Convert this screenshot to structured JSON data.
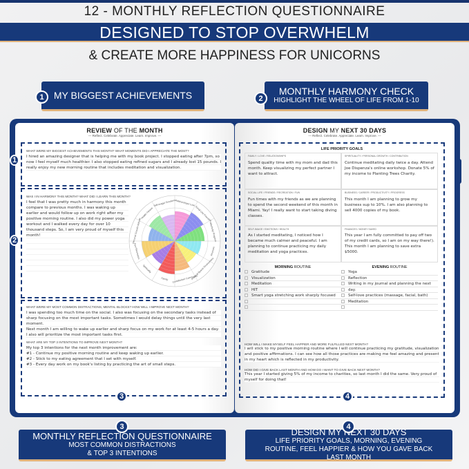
{
  "header": {
    "title": "12 - MONTHLY REFLECTION QUESTIONNAIRE",
    "banner": "DESIGNED TO STOP OVERWHELM",
    "subtitle": "& CREATE MORE HAPPINESS FOR UNICORNS"
  },
  "callouts": [
    {
      "num": "1",
      "title": "MY BIGGEST ACHIEVEMENTS",
      "sub": ""
    },
    {
      "num": "2",
      "title": "MONTHLY HARMONY CHECK",
      "sub": "HIGHLIGHT THE WHEEL OF LIFE FROM 1-10"
    },
    {
      "num": "3",
      "title": "MONTHLY REFLECTION QUESTIONNAIRE",
      "sub": "MOST COMMON DISTRACTIONS & TOP 3 INTENTIONS"
    },
    {
      "num": "4",
      "title": "DESIGN MY NEXT 30 DAYS",
      "sub": "LIFE PRIORITY GOALS, MORNING, EVENING ROUTINE, FEEL HAPPIER & HOW YOU GAVE BACK LAST MONTH"
    }
  ],
  "colors": {
    "navy": "#17397a",
    "gold": "#e0b27a"
  },
  "left": {
    "title_a": "REVIEW",
    "title_b": "OF THE",
    "title_c": "MONTH",
    "tagline": "— Reflect. Celebrate. Appreciate. Learn. Improve. —",
    "q1": "WHAT WERE MY BIGGEST ACHIEVEMENTS THIS MONTH? WHAT MOMENTS DID I APPRECIATE THE MOST?",
    "a1": "I hired an amazing designer that is helping me with my book project. I stopped eating after 7pm, so now I feel myself much healthier. I also stopped eating refined sugars and I already lost 15 pounds. I really enjoy my new morning routine that includes meditation and visualization.",
    "q2": "WAS I IN HARMONY THIS MONTH? WHAT DID I LEARN THIS MONTH?",
    "a2": "I feel that I was pretty much in harmony this month compare to previous months. I was waking up earlier and would follow up on work right after my positive morning routine. I also did my power yoga workout and I walked every day for over 10 thousand steps. So, I am very proud of myself this month!",
    "q3": "WHAT WERE MY MOST COMMON DISTRACTIONS, MENTAL BLOCKS? HOW WILL I IMPROVE NEXT MONTH?",
    "a3": "I was spending too much time on the social. I also was focusing on the secondary tasks instead of sharp focusing on the most important tasks. Sometimes I would delay things until the very last moment.",
    "a3b": "Next month I am willing to wake up earlier and sharp focus on my work for at least 4-5 hours a day. I also will prioritize the most important tasks first.",
    "q4": "WHAT ARE MY TOP 3 INTENTIONS TO IMPROVE NEXT MONTH?",
    "a4": [
      "My top 3 intentions for the next month improvement are:",
      "#1 - Continue my positive morning routine and keep waking up earlier.",
      "#2 - Stick to my eating agreement that I set with myself.",
      "#3 - Every day work on my book's listing by practicing the art of small steps."
    ]
  },
  "wheel": {
    "max": 10,
    "segments": [
      {
        "label": "Relationships/ Love",
        "value": 9,
        "color": "#f59ad8"
      },
      {
        "label": "Social Life/ Friends",
        "value": 10,
        "color": "#8c8ef0"
      },
      {
        "label": "Productivity/ Progress",
        "value": 9,
        "color": "#7fe07f"
      },
      {
        "label": "Finances",
        "value": 8,
        "color": "#8fe8f2"
      },
      {
        "label": "Physical Space/ Environment",
        "value": 7.5,
        "color": "#f7f07a"
      },
      {
        "label": "Contribution/ Community",
        "value": 9,
        "color": "#f5b97c"
      },
      {
        "label": "Family",
        "value": 10,
        "color": "#f25b5b"
      },
      {
        "label": "Spirituality",
        "value": 8,
        "color": "#a77de6"
      },
      {
        "label": "Fun/ Recreation",
        "value": 10,
        "color": "#f5d070"
      },
      {
        "label": "Personal Growth/ Attitude",
        "value": 8,
        "color": "#8fb3ec"
      },
      {
        "label": "Health/ Fitness",
        "value": 9,
        "color": "#9ee8a6"
      },
      {
        "label": "Self-image/ Emotions",
        "value": 8,
        "color": "#d9b8f2"
      }
    ]
  },
  "right": {
    "title_a": "DESIGN",
    "title_b": "MY",
    "title_c": "NEXT 30 DAYS",
    "tagline": "— Reflect. Celebrate. Appreciate. Learn. Improve. —",
    "goals_title": "LIFE PRIORITY GOALS",
    "goals": [
      {
        "label": "FAMILY / LOVE / RELATIONSHIPS",
        "text": "Spend quality time with my mom and dad this month. Keep visualizing my perfect partner I want to attract."
      },
      {
        "label": "SPIRITUALITY / PERSONAL GROWTH / CONTRIBUTION",
        "text": "Continue meditating daily twice a day. Attend Joe Dispenza's online workshop. Donate 5% of my income to Planting Trees Charity."
      },
      {
        "label": "SOCIAL LIFE / FRIENDS / RECREATION / FUN",
        "text": "Fun times with my friends as we are planning to spend the second weekend of this month in Miami. Yay! I really want to start taking diving classes."
      },
      {
        "label": "BUSINESS / CAREER / PRODUCTIVITY / PROGRESS",
        "text": "This month I am planning to grow my business sup to 10%. I am also planning to sell 4000 copies of my book."
      },
      {
        "label": "SELF-IMAGE / EMOTIONS / HEALTH",
        "text": "As I started meditating, I noticed how I became much calmer and peaceful. I am planning to continue practicing my daily meditation and yoga practices."
      },
      {
        "label": "FINANCES / MONEY SAVED",
        "text": "This year I am fully committed to pay off two of my credit cards, so I am on my way there!). This month I am planning to save extra $5000."
      }
    ],
    "morning_a": "MORNING",
    "morning_b": "ROUTINE",
    "evening_a": "EVENING",
    "evening_b": "ROUTINE",
    "morning": [
      "Gratitude",
      "Visualization",
      "Meditation",
      "HIT",
      "Smart yoga stretching work sharply focused",
      "",
      ""
    ],
    "evening": [
      "Yoga",
      "Reflection",
      "Writing in my journal and planning the next",
      "day.",
      "Self-love practices (massage, facial, bath)",
      "Meditation",
      ""
    ],
    "q5": "HOW WILL I MAKE MYSELF FEEL HAPPIER AND MORE FULFILLED NEXT MONTH?",
    "a5": "I will stick to my positive morning routine where I will continue practicing my gratitude, visualization and positive affirmations. I can see how all those practices are making me feel amazing and present in my heart which is reflected in my productivity.",
    "q6": "HOW DID I GIVE BACK LAST MONTH AND HOW DO I WANT TO GIVE BACK NEXT MONTH?",
    "a6": "This year I started giving 5% of my income to charities, so last month I did the same. Very proud of myself for doing that!"
  }
}
